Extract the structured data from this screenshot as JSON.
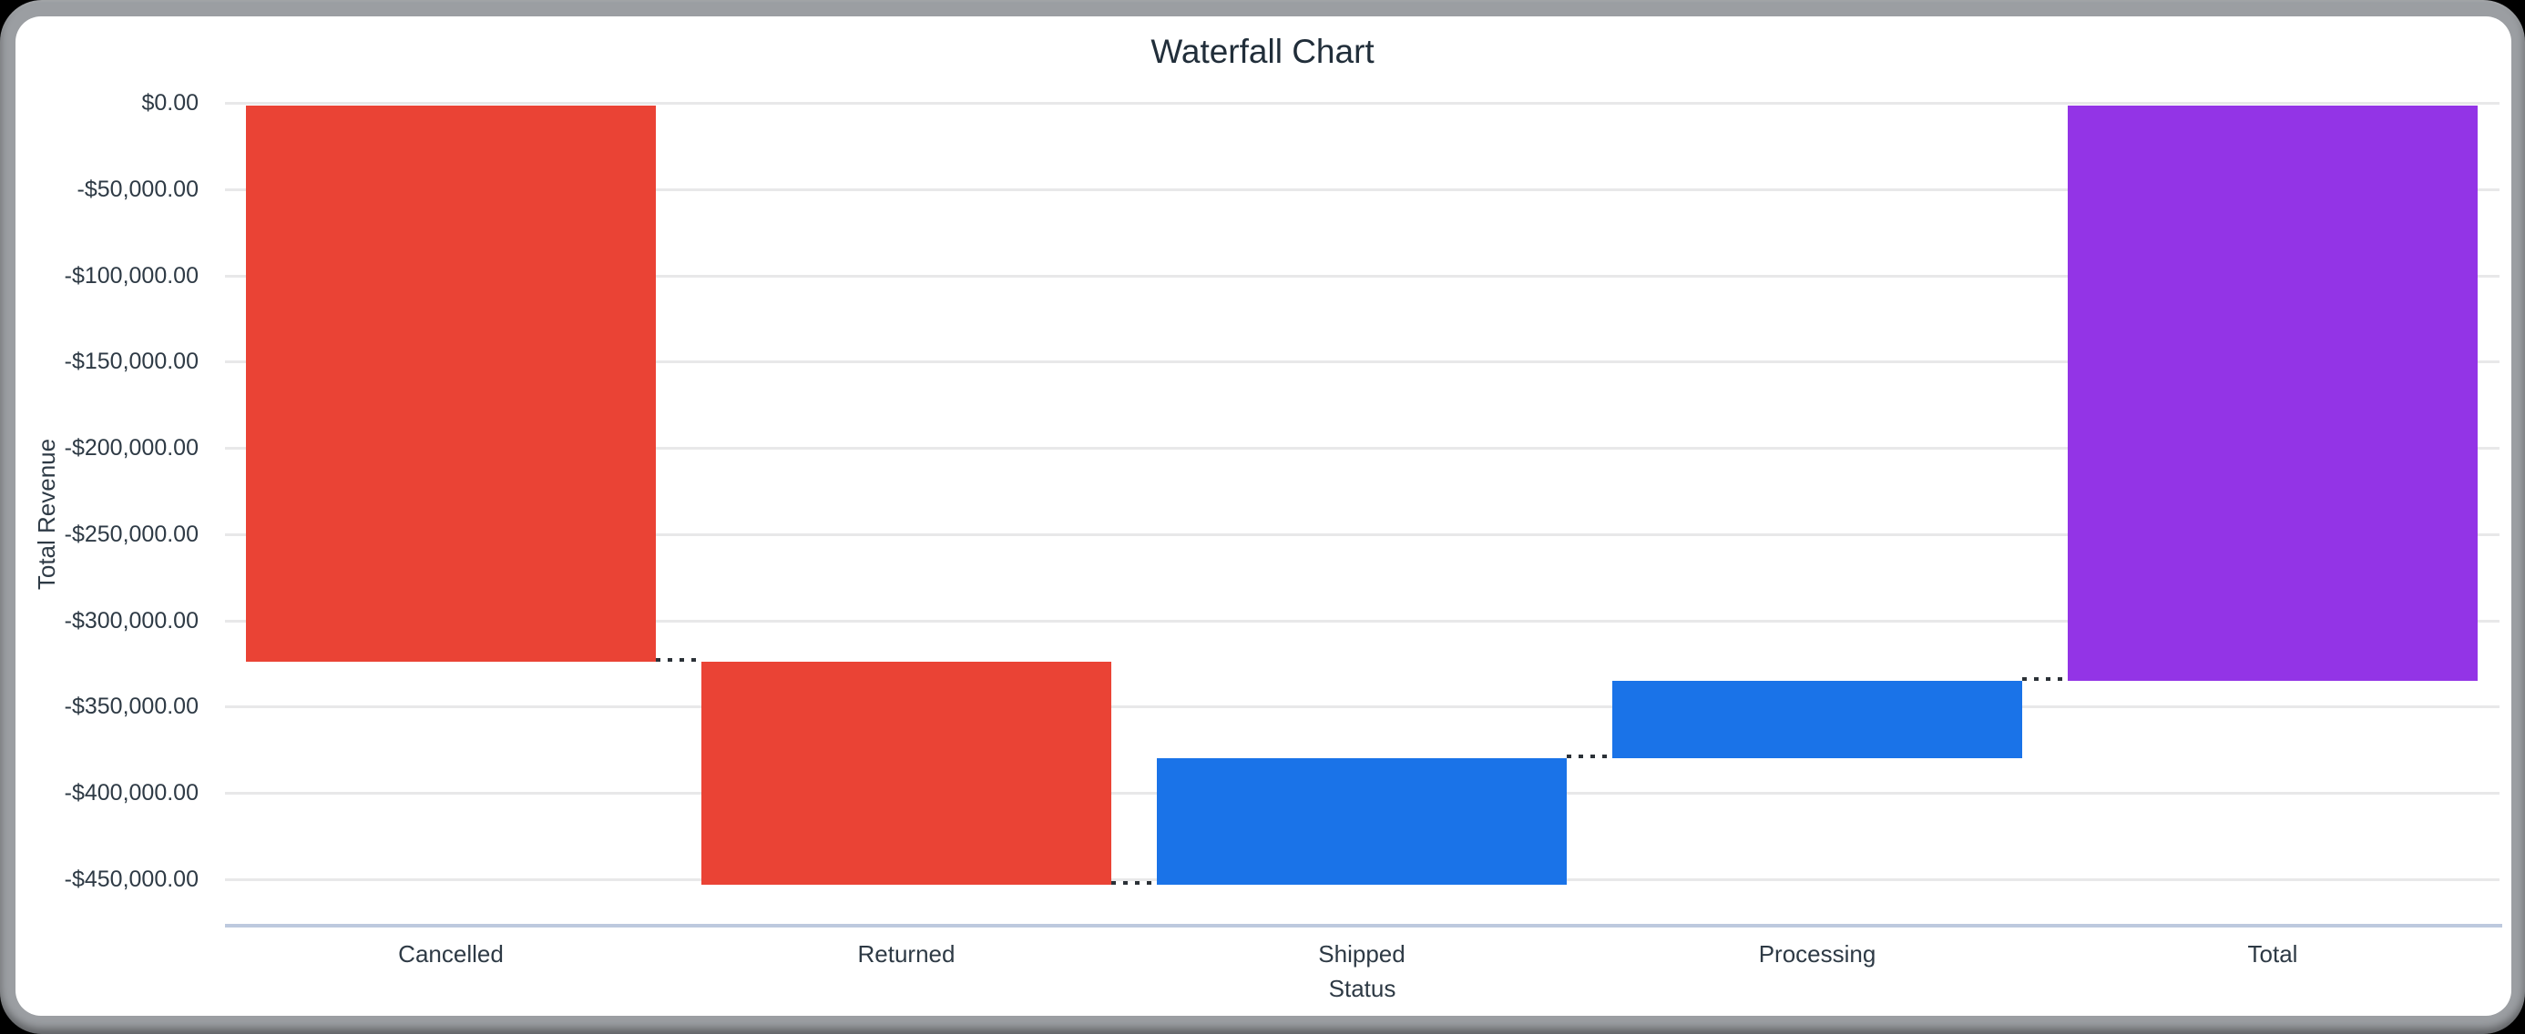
{
  "window": {
    "frame_color": "#9b9ea2",
    "background": "#000000",
    "card_color": "#ffffff"
  },
  "chart_data": {
    "type": "bar",
    "subtype": "waterfall",
    "title": "Waterfall Chart",
    "xlabel": "Status",
    "ylabel": "Total Revenue",
    "categories": [
      "Cancelled",
      "Returned",
      "Shipped",
      "Processing",
      "Total"
    ],
    "series": [
      {
        "label": "Cancelled",
        "start": 0,
        "end": -324000,
        "delta": -324000,
        "role": "decrease"
      },
      {
        "label": "Returned",
        "start": -324000,
        "end": -453000,
        "delta": -129000,
        "role": "decrease"
      },
      {
        "label": "Shipped",
        "start": -453000,
        "end": -380000,
        "delta": 73000,
        "role": "increase"
      },
      {
        "label": "Processing",
        "start": -380000,
        "end": -335000,
        "delta": 45000,
        "role": "increase"
      },
      {
        "label": "Total",
        "start": 0,
        "end": -335000,
        "delta": -335000,
        "role": "total"
      }
    ],
    "colors": {
      "decrease": "#ea4335",
      "increase": "#1a73e8",
      "total": "#9334e6"
    },
    "y_ticks": [
      {
        "label": "$0.00",
        "value": 0
      },
      {
        "label": "-$50,000.00",
        "value": -50000
      },
      {
        "label": "-$100,000.00",
        "value": -100000
      },
      {
        "label": "-$150,000.00",
        "value": -150000
      },
      {
        "label": "-$200,000.00",
        "value": -200000
      },
      {
        "label": "-$250,000.00",
        "value": -250000
      },
      {
        "label": "-$300,000.00",
        "value": -300000
      },
      {
        "label": "-$350,000.00",
        "value": -350000
      },
      {
        "label": "-$400,000.00",
        "value": -400000
      },
      {
        "label": "-$450,000.00",
        "value": -450000
      }
    ],
    "ylim": [
      -475000,
      0
    ],
    "grid": true,
    "legend": "none",
    "connectors": "dotted"
  }
}
